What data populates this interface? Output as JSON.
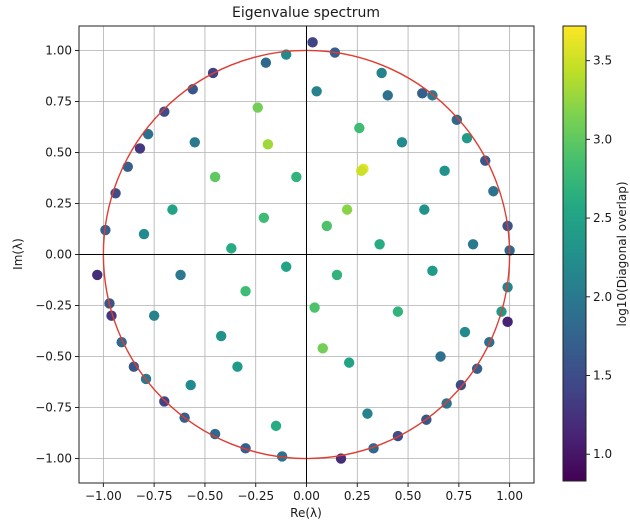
{
  "chart_data": {
    "type": "scatter",
    "title": "Eigenvalue spectrum",
    "xlabel": "Re(λ)",
    "ylabel": "Im(λ)",
    "xlim": [
      -1.12,
      1.12
    ],
    "ylim": [
      -1.12,
      1.12
    ],
    "x_ticks": [
      "−1.00",
      "−0.75",
      "−0.50",
      "−0.25",
      "0.00",
      "0.25",
      "0.50",
      "0.75",
      "1.00"
    ],
    "y_ticks": [
      "1.00",
      "0.75",
      "0.50",
      "0.25",
      "0.00",
      "−0.25",
      "−0.50",
      "−0.75",
      "−1.00"
    ],
    "grid": true,
    "reference_circle": {
      "center": [
        0,
        0
      ],
      "radius": 1.0,
      "color": "#e03c31"
    },
    "reference_axes_color": "#000000",
    "colormap": "viridis",
    "colorbar": {
      "label": "log10(Diagonal overlap)",
      "range": [
        0.83,
        3.72
      ],
      "ticks": [
        "3.5",
        "3.0",
        "2.5",
        "2.0",
        "1.5",
        "1.0"
      ]
    },
    "points": [
      {
        "x": 0.03,
        "y": 1.04,
        "v": 1.4
      },
      {
        "x": 0.14,
        "y": 0.99,
        "v": 1.7
      },
      {
        "x": -0.1,
        "y": 0.98,
        "v": 2.2
      },
      {
        "x": -0.2,
        "y": 0.94,
        "v": 1.8
      },
      {
        "x": -0.46,
        "y": 0.89,
        "v": 1.4
      },
      {
        "x": -0.56,
        "y": 0.81,
        "v": 1.6
      },
      {
        "x": 0.37,
        "y": 0.89,
        "v": 2.1
      },
      {
        "x": 0.57,
        "y": 0.79,
        "v": 1.7
      },
      {
        "x": 0.62,
        "y": 0.78,
        "v": 2.0
      },
      {
        "x": -0.7,
        "y": 0.7,
        "v": 1.5
      },
      {
        "x": 0.74,
        "y": 0.66,
        "v": 1.8
      },
      {
        "x": -0.78,
        "y": 0.59,
        "v": 1.9
      },
      {
        "x": 0.79,
        "y": 0.57,
        "v": 2.4
      },
      {
        "x": -0.82,
        "y": 0.52,
        "v": 1.3
      },
      {
        "x": 0.88,
        "y": 0.46,
        "v": 1.6
      },
      {
        "x": -0.88,
        "y": 0.43,
        "v": 1.7
      },
      {
        "x": 0.92,
        "y": 0.31,
        "v": 1.9
      },
      {
        "x": -0.94,
        "y": 0.3,
        "v": 1.5
      },
      {
        "x": 0.99,
        "y": 0.14,
        "v": 1.6
      },
      {
        "x": -0.99,
        "y": 0.12,
        "v": 1.7
      },
      {
        "x": 1.0,
        "y": 0.02,
        "v": 1.8
      },
      {
        "x": -1.03,
        "y": -0.1,
        "v": 1.2
      },
      {
        "x": 0.99,
        "y": -0.16,
        "v": 2.1
      },
      {
        "x": -0.97,
        "y": -0.24,
        "v": 1.6
      },
      {
        "x": 0.96,
        "y": -0.28,
        "v": 2.4
      },
      {
        "x": -0.96,
        "y": -0.3,
        "v": 1.3
      },
      {
        "x": 0.99,
        "y": -0.33,
        "v": 1.1
      },
      {
        "x": -0.91,
        "y": -0.43,
        "v": 1.8
      },
      {
        "x": 0.9,
        "y": -0.43,
        "v": 1.9
      },
      {
        "x": -0.85,
        "y": -0.55,
        "v": 1.6
      },
      {
        "x": 0.84,
        "y": -0.56,
        "v": 1.7
      },
      {
        "x": -0.79,
        "y": -0.61,
        "v": 2.0
      },
      {
        "x": 0.76,
        "y": -0.64,
        "v": 1.5
      },
      {
        "x": -0.7,
        "y": -0.72,
        "v": 1.4
      },
      {
        "x": 0.69,
        "y": -0.73,
        "v": 1.9
      },
      {
        "x": -0.6,
        "y": -0.8,
        "v": 1.7
      },
      {
        "x": 0.59,
        "y": -0.81,
        "v": 1.6
      },
      {
        "x": -0.45,
        "y": -0.88,
        "v": 1.8
      },
      {
        "x": 0.45,
        "y": -0.89,
        "v": 1.5
      },
      {
        "x": -0.3,
        "y": -0.95,
        "v": 1.7
      },
      {
        "x": 0.33,
        "y": -0.95,
        "v": 1.8
      },
      {
        "x": -0.12,
        "y": -0.99,
        "v": 1.9
      },
      {
        "x": 0.17,
        "y": -1.0,
        "v": 1.2
      },
      {
        "x": 0.26,
        "y": 0.62,
        "v": 2.8
      },
      {
        "x": 0.28,
        "y": 0.42,
        "v": 3.6
      },
      {
        "x": 0.27,
        "y": 0.41,
        "v": 3.5
      },
      {
        "x": 0.2,
        "y": 0.22,
        "v": 3.2
      },
      {
        "x": -0.19,
        "y": 0.54,
        "v": 3.3
      },
      {
        "x": -0.24,
        "y": 0.72,
        "v": 3.1
      },
      {
        "x": -0.45,
        "y": 0.38,
        "v": 3.0
      },
      {
        "x": 0.04,
        "y": -0.26,
        "v": 2.9
      },
      {
        "x": 0.08,
        "y": -0.46,
        "v": 3.1
      },
      {
        "x": -0.3,
        "y": -0.18,
        "v": 2.8
      },
      {
        "x": 0.45,
        "y": -0.28,
        "v": 2.7
      },
      {
        "x": -0.57,
        "y": -0.64,
        "v": 2.2
      },
      {
        "x": 0.21,
        "y": -0.53,
        "v": 2.5
      },
      {
        "x": -0.15,
        "y": -0.84,
        "v": 2.6
      },
      {
        "x": -0.05,
        "y": 0.38,
        "v": 2.7
      },
      {
        "x": 0.36,
        "y": 0.05,
        "v": 2.6
      },
      {
        "x": -0.66,
        "y": 0.22,
        "v": 2.5
      },
      {
        "x": 0.68,
        "y": 0.41,
        "v": 2.3
      },
      {
        "x": 0.62,
        "y": -0.08,
        "v": 2.4
      },
      {
        "x": -0.37,
        "y": 0.03,
        "v": 2.6
      },
      {
        "x": 0.1,
        "y": 0.14,
        "v": 2.9
      },
      {
        "x": -0.1,
        "y": -0.06,
        "v": 2.5
      },
      {
        "x": 0.47,
        "y": 0.55,
        "v": 2.2
      },
      {
        "x": -0.55,
        "y": 0.55,
        "v": 2.0
      },
      {
        "x": -0.75,
        "y": -0.3,
        "v": 2.1
      },
      {
        "x": 0.78,
        "y": -0.38,
        "v": 2.2
      },
      {
        "x": 0.3,
        "y": -0.78,
        "v": 2.1
      },
      {
        "x": -0.34,
        "y": -0.55,
        "v": 2.4
      },
      {
        "x": 0.58,
        "y": 0.22,
        "v": 2.3
      },
      {
        "x": -0.21,
        "y": 0.18,
        "v": 2.8
      },
      {
        "x": 0.15,
        "y": -0.1,
        "v": 2.7
      },
      {
        "x": -0.62,
        "y": -0.1,
        "v": 2.0
      },
      {
        "x": 0.66,
        "y": -0.5,
        "v": 1.9
      },
      {
        "x": 0.05,
        "y": 0.8,
        "v": 2.1
      },
      {
        "x": -0.42,
        "y": -0.4,
        "v": 2.3
      },
      {
        "x": 0.4,
        "y": 0.78,
        "v": 1.9
      },
      {
        "x": -0.8,
        "y": 0.1,
        "v": 2.2
      },
      {
        "x": 0.82,
        "y": 0.05,
        "v": 2.0
      }
    ]
  }
}
